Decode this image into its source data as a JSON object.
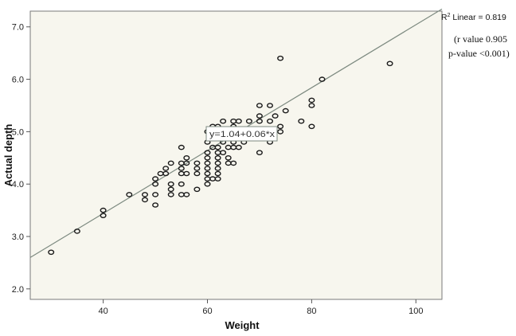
{
  "chart_data": {
    "type": "scatter",
    "title": "",
    "xlabel": "Weight",
    "ylabel": "Actual depth",
    "xlim": [
      26,
      105
    ],
    "ylim": [
      1.8,
      7.3
    ],
    "x_ticks": [
      40,
      60,
      80,
      100
    ],
    "x_tick_labels": [
      "40",
      "60",
      "80",
      "100"
    ],
    "y_ticks": [
      2.0,
      3.0,
      4.0,
      5.0,
      6.0,
      7.0
    ],
    "y_tick_labels": [
      "2.0",
      "3.0",
      "4.0",
      "5.0",
      "6.0",
      "7.0"
    ],
    "grid": false,
    "marker_color": "#1a1a1a",
    "plot_background": "#f7f6ee",
    "line_color": "#7d8a80",
    "fit_line": {
      "intercept": 1.04,
      "slope": 0.06,
      "equation_label": "y=1.04+0.06*x"
    },
    "r2_label": {
      "prefix": "R",
      "superscript": "2",
      "suffix": " Linear = 0.819"
    },
    "annotations": [
      "(r value 0.905",
      "p-value <0.001)"
    ],
    "points": [
      [
        30,
        2.7
      ],
      [
        35,
        3.1
      ],
      [
        40,
        3.5
      ],
      [
        40,
        3.4
      ],
      [
        45,
        3.8
      ],
      [
        48,
        3.8
      ],
      [
        48,
        3.7
      ],
      [
        50,
        4.1
      ],
      [
        50,
        4.0
      ],
      [
        50,
        3.8
      ],
      [
        50,
        3.6
      ],
      [
        51,
        4.2
      ],
      [
        52,
        4.2
      ],
      [
        52,
        4.3
      ],
      [
        53,
        4.0
      ],
      [
        53,
        3.9
      ],
      [
        53,
        3.8
      ],
      [
        53,
        4.4
      ],
      [
        55,
        4.7
      ],
      [
        55,
        4.4
      ],
      [
        55,
        4.3
      ],
      [
        55,
        4.2
      ],
      [
        55,
        4.0
      ],
      [
        55,
        3.8
      ],
      [
        56,
        4.5
      ],
      [
        56,
        4.4
      ],
      [
        56,
        4.2
      ],
      [
        56,
        3.8
      ],
      [
        58,
        4.4
      ],
      [
        58,
        4.3
      ],
      [
        58,
        4.2
      ],
      [
        58,
        3.9
      ],
      [
        60,
        5.0
      ],
      [
        60,
        4.8
      ],
      [
        60,
        4.6
      ],
      [
        60,
        4.5
      ],
      [
        60,
        4.4
      ],
      [
        60,
        4.3
      ],
      [
        60,
        4.2
      ],
      [
        60,
        4.1
      ],
      [
        60,
        4.0
      ],
      [
        61,
        5.1
      ],
      [
        61,
        4.7
      ],
      [
        61,
        4.1
      ],
      [
        62,
        5.1
      ],
      [
        62,
        4.7
      ],
      [
        62,
        4.6
      ],
      [
        62,
        4.5
      ],
      [
        62,
        4.4
      ],
      [
        62,
        4.3
      ],
      [
        62,
        4.2
      ],
      [
        62,
        4.1
      ],
      [
        63,
        5.2
      ],
      [
        63,
        5.0
      ],
      [
        63,
        4.8
      ],
      [
        63,
        4.6
      ],
      [
        64,
        4.7
      ],
      [
        64,
        4.5
      ],
      [
        64,
        4.4
      ],
      [
        65,
        5.2
      ],
      [
        65,
        5.1
      ],
      [
        65,
        4.8
      ],
      [
        65,
        4.7
      ],
      [
        65,
        4.4
      ],
      [
        66,
        5.2
      ],
      [
        66,
        5.0
      ],
      [
        66,
        4.9
      ],
      [
        66,
        4.7
      ],
      [
        67,
        5.0
      ],
      [
        67,
        4.8
      ],
      [
        68,
        5.2
      ],
      [
        68,
        5.0
      ],
      [
        68,
        4.9
      ],
      [
        70,
        5.5
      ],
      [
        70,
        5.3
      ],
      [
        70,
        5.2
      ],
      [
        70,
        5.0
      ],
      [
        70,
        4.9
      ],
      [
        70,
        4.6
      ],
      [
        72,
        5.5
      ],
      [
        72,
        5.2
      ],
      [
        72,
        4.8
      ],
      [
        73,
        5.3
      ],
      [
        74,
        6.4
      ],
      [
        74,
        5.1
      ],
      [
        74,
        5.0
      ],
      [
        75,
        5.4
      ],
      [
        78,
        5.2
      ],
      [
        80,
        5.6
      ],
      [
        80,
        5.5
      ],
      [
        80,
        5.1
      ],
      [
        82,
        6.0
      ],
      [
        95,
        6.3
      ]
    ]
  }
}
